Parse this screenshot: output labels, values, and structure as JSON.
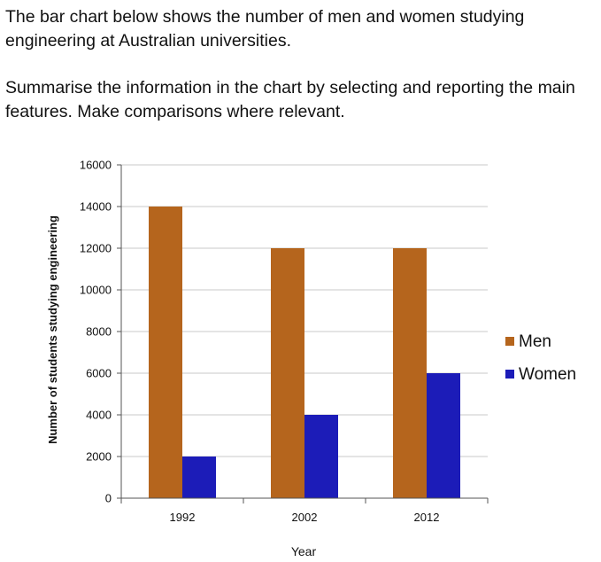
{
  "prompt": {
    "line1": "The bar chart below shows the number of men and women studying engineering at Australian universities.",
    "line2": "Summarise the information in the chart by selecting and reporting the main features. Make comparisons where relevant."
  },
  "chart_data": {
    "type": "bar",
    "categories": [
      "1992",
      "2002",
      "2012"
    ],
    "series": [
      {
        "name": "Men",
        "values": [
          14000,
          12000,
          12000
        ],
        "color": "#b5651d"
      },
      {
        "name": "Women",
        "values": [
          2000,
          4000,
          6000
        ],
        "color": "#1c1cb8"
      }
    ],
    "yticks": [
      "0",
      "2000",
      "4000",
      "6000",
      "8000",
      "10000",
      "12000",
      "14000",
      "16000"
    ],
    "ylim": [
      0,
      16000
    ],
    "xlabel": "Year",
    "ylabel": "Number of students studying engineering",
    "grid": true,
    "legend_position": "right"
  }
}
